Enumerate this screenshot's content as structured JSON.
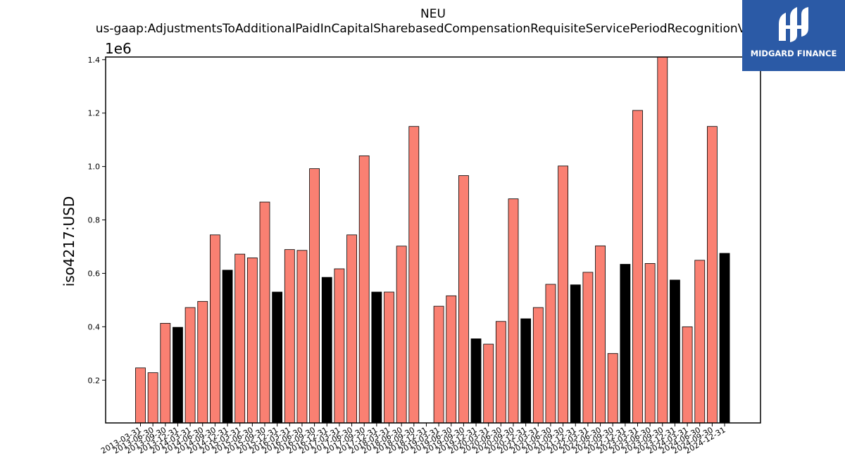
{
  "header": {
    "title_line1": "NEU",
    "title_line2": "us-gaap:AdjustmentsToAdditionalPaidInCapitalSharebasedCompensationRequisiteServicePeriodRecognitionValue"
  },
  "logo": {
    "name": "MIDGARD FINANCE",
    "background": "#2b5aa6",
    "icon": "midgard-logo-icon"
  },
  "chart_data": {
    "type": "bar",
    "title": "NEU",
    "subtitle": "us-gaap:AdjustmentsToAdditionalPaidInCapitalSharebasedCompensationRequisiteServicePeriodRecognitionValue",
    "xlabel": "",
    "ylabel": "iso4217:USD",
    "y_multiplier": "1e6",
    "ylim": [
      0.04,
      1.41
    ],
    "yticks": [
      0.2,
      0.4,
      0.6,
      0.8,
      1.0,
      1.2,
      1.4
    ],
    "ytick_labels": [
      "0.2",
      "0.4",
      "0.6",
      "0.8",
      "1.0",
      "1.2",
      "1.4"
    ],
    "grid": false,
    "colors": {
      "quarter": "#fa8072",
      "year_end": "#000000",
      "edge": "#000000"
    },
    "categories": [
      "2013-03-31",
      "2013-06-30",
      "2013-09-30",
      "2013-12-31",
      "2014-03-31",
      "2014-06-30",
      "2014-09-30",
      "2014-12-31",
      "2015-03-31",
      "2015-06-30",
      "2015-09-30",
      "2015-12-31",
      "2016-03-31",
      "2016-06-30",
      "2016-09-30",
      "2016-12-31",
      "2017-03-31",
      "2017-06-30",
      "2017-09-30",
      "2017-12-31",
      "2018-03-31",
      "2018-06-30",
      "2018-09-30",
      "2018-12-31",
      "2019-03-31",
      "2019-06-30",
      "2019-09-30",
      "2019-12-31",
      "2020-03-31",
      "2020-06-30",
      "2020-09-30",
      "2020-12-31",
      "2021-03-31",
      "2021-06-30",
      "2021-09-30",
      "2021-12-31",
      "2022-03-31",
      "2022-06-30",
      "2022-09-30",
      "2022-12-31",
      "2023-03-31",
      "2023-06-30",
      "2023-09-30",
      "2023-12-31",
      "2024-03-31",
      "2024-06-30",
      "2024-09-30",
      "2024-12-31"
    ],
    "values": [
      0.246,
      0.228,
      0.413,
      0.398,
      0.472,
      0.495,
      0.744,
      0.612,
      0.672,
      0.658,
      0.867,
      0.53,
      0.689,
      0.686,
      0.992,
      0.585,
      0.617,
      0.744,
      1.04,
      0.53,
      0.53,
      0.702,
      1.15,
      null,
      0.477,
      0.516,
      0.966,
      0.355,
      0.335,
      0.42,
      0.879,
      0.43,
      0.472,
      0.559,
      1.002,
      0.557,
      0.604,
      0.703,
      0.3,
      0.634,
      1.21,
      0.637,
      1.41,
      0.575,
      0.4,
      0.649,
      1.15,
      0.675
    ],
    "year_end": [
      false,
      false,
      false,
      true,
      false,
      false,
      false,
      true,
      false,
      false,
      false,
      true,
      false,
      false,
      false,
      true,
      false,
      false,
      false,
      true,
      false,
      false,
      false,
      true,
      false,
      false,
      false,
      true,
      false,
      false,
      false,
      true,
      false,
      false,
      false,
      true,
      false,
      false,
      false,
      true,
      false,
      false,
      false,
      true,
      false,
      false,
      false,
      true
    ]
  }
}
